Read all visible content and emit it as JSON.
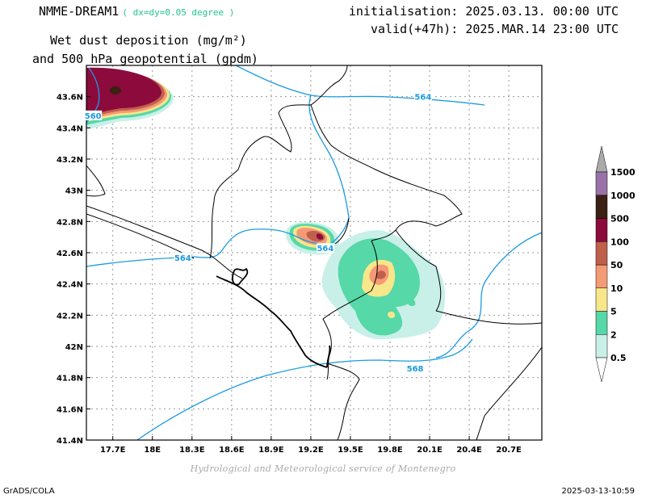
{
  "header": {
    "model": "NMME-DREAM1",
    "resolution": "( dx=dy=0.05 degree )",
    "initialisation": "initialisation: 2025.03.13. 00:00 UTC",
    "valid": "valid(+47h): 2025.MAR.14 23:00 UTC",
    "title_line1": "Wet dust deposition (mg/m²)",
    "title_line2": "and 500 hPa geopotential (gpdm)"
  },
  "footer": {
    "credit": "Hydrological and Meteorological service of Montenegro",
    "software": "GrADS/COLA",
    "timestamp": "2025-03-13-10:59"
  },
  "map": {
    "lon_range": [
      17.5,
      20.95
    ],
    "lat_range": [
      41.4,
      43.8
    ],
    "lon_ticks": [
      "17.7E",
      "18E",
      "18.3E",
      "18.6E",
      "18.9E",
      "19.2E",
      "19.5E",
      "19.8E",
      "20.1E",
      "20.4E",
      "20.7E"
    ],
    "lon_tick_values": [
      17.7,
      18.0,
      18.3,
      18.6,
      18.9,
      19.2,
      19.5,
      19.8,
      20.1,
      20.4,
      20.7
    ],
    "lat_ticks": [
      "43.6N",
      "43.4N",
      "43.2N",
      "43N",
      "42.8N",
      "42.6N",
      "42.4N",
      "42.2N",
      "42N",
      "41.8N",
      "41.6N",
      "41.4N"
    ],
    "lat_tick_values": [
      43.6,
      43.4,
      43.2,
      43.0,
      42.8,
      42.6,
      42.4,
      42.2,
      42.0,
      41.8,
      41.6,
      41.4
    ],
    "contour_labels": [
      {
        "text": "560",
        "lon": 17.55,
        "lat": 43.48
      },
      {
        "text": "564",
        "lon": 20.05,
        "lat": 43.6
      },
      {
        "text": "564",
        "lon": 18.23,
        "lat": 42.57
      },
      {
        "text": "564",
        "lon": 19.31,
        "lat": 42.63
      },
      {
        "text": "568",
        "lon": 19.99,
        "lat": 41.86
      }
    ],
    "contour_color": "#1a9be0"
  },
  "legend": {
    "levels": [
      "0.5",
      "2",
      "5",
      "10",
      "50",
      "100",
      "500",
      "1000",
      "1500"
    ],
    "colors": [
      "#c8f0e8",
      "#56d8a8",
      "#f8e68a",
      "#f49a76",
      "#c0604c",
      "#8c0a3c",
      "#3c2014",
      "#9a72a8",
      "#aaaaaa"
    ]
  }
}
